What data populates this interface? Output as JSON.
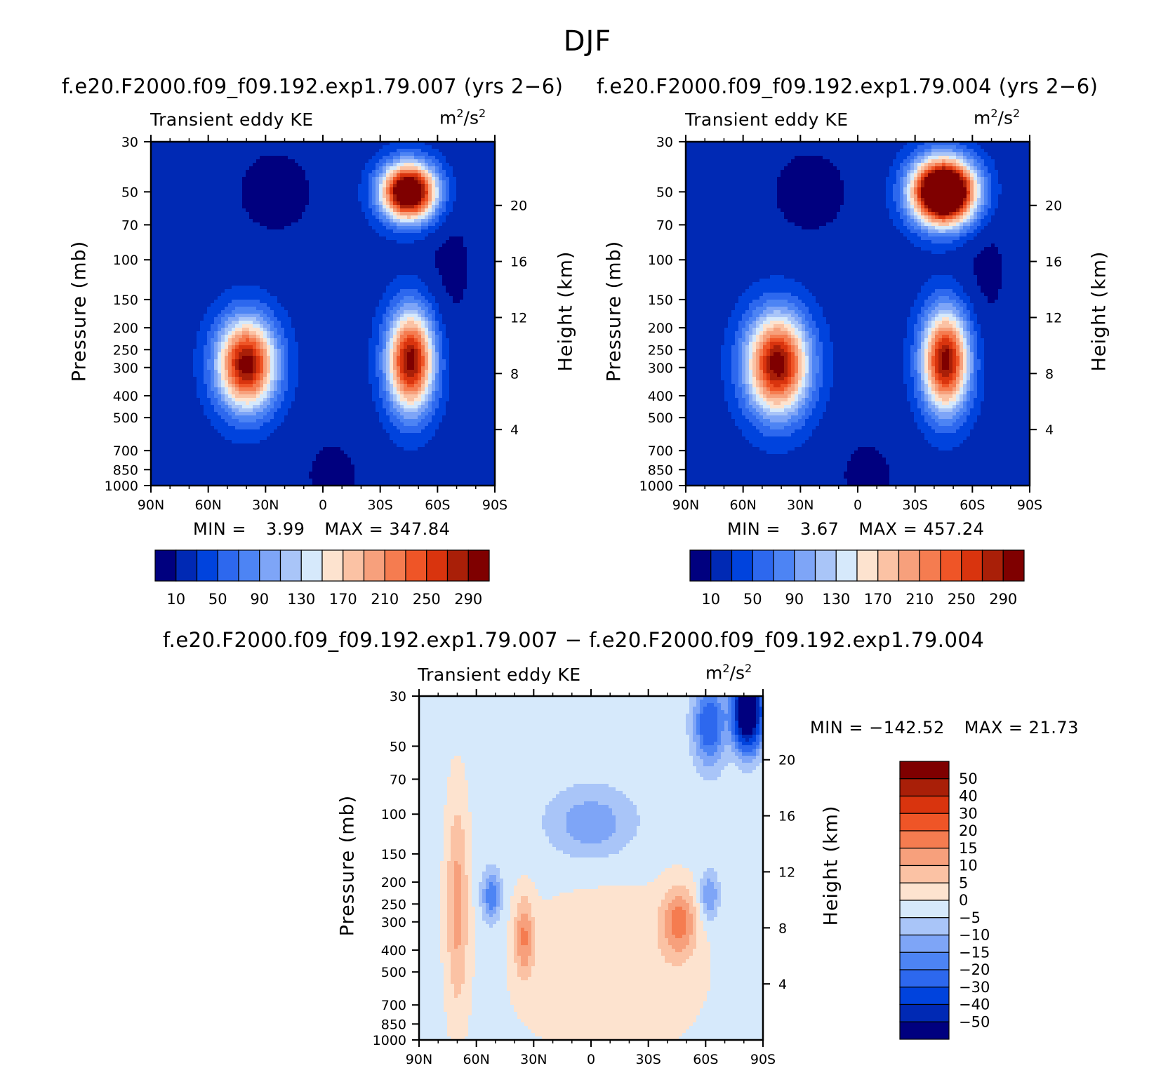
{
  "figure": {
    "title": "DJF"
  },
  "top_left": {
    "case_title": "f.e20.F2000.f09_f09.192.exp1.79.007 (yrs 2−6)",
    "variable": "Transient eddy KE",
    "units": "m",
    "units_exp1": "2",
    "units_mid": "/s",
    "units_exp2": "2",
    "min_label": "MIN =",
    "min_value": "3.99",
    "max_label": "MAX =",
    "max_value": "347.84"
  },
  "top_right": {
    "case_title": "f.e20.F2000.f09_f09.192.exp1.79.004 (yrs 2−6)",
    "variable": "Transient eddy KE",
    "units": "m",
    "units_exp1": "2",
    "units_mid": "/s",
    "units_exp2": "2",
    "min_label": "MIN =",
    "min_value": "3.67",
    "max_label": "MAX =",
    "max_value": "457.24"
  },
  "bottom": {
    "case_title": "f.e20.F2000.f09_f09.192.exp1.79.007 − f.e20.F2000.f09_f09.192.exp1.79.004",
    "variable": "Transient eddy KE",
    "units": "m",
    "units_exp1": "2",
    "units_mid": "/s",
    "units_exp2": "2",
    "min_label": "MIN =",
    "min_value": "−142.52",
    "max_label": "MAX =",
    "max_value": "21.73"
  },
  "axes": {
    "ylabel_left": "Pressure (mb)",
    "ylabel_right": "Height (km)"
  },
  "colors": {
    "seq": [
      "#00007f",
      "#0029b4",
      "#0043dd",
      "#2d68ee",
      "#4d84f4",
      "#7ea5f7",
      "#a9c5f8",
      "#d6e9fb",
      "#fde3cf",
      "#fbc2a4",
      "#f7a07c",
      "#f57c50",
      "#ef5527",
      "#d9340e",
      "#a91f08",
      "#7f0000"
    ],
    "div": [
      "#00007f",
      "#0029b4",
      "#0043dd",
      "#2d68ee",
      "#4d84f4",
      "#7ea5f7",
      "#a9c5f8",
      "#d6e9fb",
      "#fde3cf",
      "#fbc2a4",
      "#f7a07c",
      "#f57c50",
      "#ef5527",
      "#d9340e",
      "#a91f08",
      "#7f0000"
    ]
  },
  "chart_data": [
    {
      "type": "contour",
      "title": "Transient eddy KE",
      "subtitle": "f.e20.F2000.f09_f09.192.exp1.79.007 (yrs 2−6)",
      "units": "m2/s2",
      "xlabel": "",
      "ylabel": "Pressure (mb)",
      "y2label": "Height (km)",
      "x_ticks": [
        "90N",
        "60N",
        "30N",
        "0",
        "30S",
        "60S",
        "90S"
      ],
      "y_ticks": [
        30,
        50,
        70,
        100,
        150,
        200,
        250,
        300,
        400,
        500,
        700,
        850,
        1000
      ],
      "y2_ticks": [
        4,
        8,
        12,
        16,
        20
      ],
      "xlim": [
        90,
        -90
      ],
      "ylim": [
        1000,
        30
      ],
      "levels": [
        10,
        30,
        50,
        70,
        90,
        110,
        130,
        150,
        170,
        190,
        210,
        230,
        250,
        270,
        290
      ],
      "colorbar_labels": [
        "10",
        "50",
        "90",
        "130",
        "170",
        "210",
        "250",
        "290"
      ],
      "min": 3.99,
      "max": 347.84,
      "base": 20,
      "features": [
        {
          "lat": -45,
          "p": 50,
          "slat": 14,
          "slp": 0.28,
          "amp": 360
        },
        {
          "lat": 40,
          "p": 290,
          "slat": 15,
          "slp": 0.45,
          "amp": 285
        },
        {
          "lat": -46,
          "p": 280,
          "slat": 12,
          "slp": 0.5,
          "amp": 285
        },
        {
          "lat": -66,
          "p": 110,
          "slat": 16,
          "slp": 0.9,
          "amp": -14
        },
        {
          "lat": 25,
          "p": 50,
          "slat": 28,
          "slp": 0.6,
          "amp": -15
        },
        {
          "lat": -5,
          "p": 900,
          "slat": 20,
          "slp": 0.5,
          "amp": -14
        }
      ]
    },
    {
      "type": "contour",
      "title": "Transient eddy KE",
      "subtitle": "f.e20.F2000.f09_f09.192.exp1.79.004 (yrs 2−6)",
      "units": "m2/s2",
      "xlabel": "",
      "ylabel": "Pressure (mb)",
      "y2label": "Height (km)",
      "x_ticks": [
        "90N",
        "60N",
        "30N",
        "0",
        "30S",
        "60S",
        "90S"
      ],
      "y_ticks": [
        30,
        50,
        70,
        100,
        150,
        200,
        250,
        300,
        400,
        500,
        700,
        850,
        1000
      ],
      "y2_ticks": [
        4,
        8,
        12,
        16,
        20
      ],
      "xlim": [
        90,
        -90
      ],
      "ylim": [
        1000,
        30
      ],
      "levels": [
        10,
        30,
        50,
        70,
        90,
        110,
        130,
        150,
        170,
        190,
        210,
        230,
        250,
        270,
        290
      ],
      "colorbar_labels": [
        "10",
        "50",
        "90",
        "130",
        "170",
        "210",
        "250",
        "290"
      ],
      "min": 3.67,
      "max": 457.24,
      "base": 20,
      "features": [
        {
          "lat": -45,
          "p": 50,
          "slat": 16,
          "slp": 0.32,
          "amp": 450
        },
        {
          "lat": 42,
          "p": 290,
          "slat": 16,
          "slp": 0.5,
          "amp": 285
        },
        {
          "lat": -46,
          "p": 280,
          "slat": 12,
          "slp": 0.5,
          "amp": 285
        },
        {
          "lat": -66,
          "p": 110,
          "slat": 16,
          "slp": 0.9,
          "amp": -14
        },
        {
          "lat": 25,
          "p": 50,
          "slat": 28,
          "slp": 0.6,
          "amp": -15
        },
        {
          "lat": -5,
          "p": 900,
          "slat": 20,
          "slp": 0.5,
          "amp": -14
        }
      ]
    },
    {
      "type": "contour",
      "title": "Transient eddy KE",
      "subtitle": "f.e20.F2000.f09_f09.192.exp1.79.007 − f.e20.F2000.f09_f09.192.exp1.79.004",
      "units": "m2/s2",
      "xlabel": "",
      "ylabel": "Pressure (mb)",
      "y2label": "Height (km)",
      "x_ticks": [
        "90N",
        "60N",
        "30N",
        "0",
        "30S",
        "60S",
        "90S"
      ],
      "y_ticks": [
        30,
        50,
        70,
        100,
        150,
        200,
        250,
        300,
        400,
        500,
        700,
        850,
        1000
      ],
      "y2_ticks": [
        4,
        8,
        12,
        16,
        20
      ],
      "xlim": [
        90,
        -90
      ],
      "ylim": [
        1000,
        30
      ],
      "levels": [
        -50,
        -40,
        -30,
        -20,
        -15,
        -10,
        -5,
        0,
        5,
        10,
        15,
        20,
        30,
        40,
        50
      ],
      "colorbar_labels": [
        "50",
        "40",
        "30",
        "20",
        "15",
        "10",
        "5",
        "0",
        "−5",
        "−10",
        "−15",
        "−20",
        "−30",
        "−40",
        "−50"
      ],
      "min": -142.52,
      "max": 21.73,
      "base": -2,
      "features": [
        {
          "lat": -82,
          "p": 35,
          "slat": 7,
          "slp": 0.35,
          "amp": -80
        },
        {
          "lat": -62,
          "p": 40,
          "slat": 8,
          "slp": 0.4,
          "amp": -25
        },
        {
          "lat": 0,
          "p": 110,
          "slat": 22,
          "slp": 0.35,
          "amp": -12
        },
        {
          "lat": -10,
          "p": 500,
          "slat": 50,
          "slp": 0.9,
          "amp": 6
        },
        {
          "lat": -46,
          "p": 300,
          "slat": 9,
          "slp": 0.35,
          "amp": 18
        },
        {
          "lat": 70,
          "p": 250,
          "slat": 6,
          "slp": 1.1,
          "amp": 14
        },
        {
          "lat": 35,
          "p": 350,
          "slat": 5,
          "slp": 0.4,
          "amp": 16
        },
        {
          "lat": 52,
          "p": 230,
          "slat": 5,
          "slp": 0.25,
          "amp": -18
        },
        {
          "lat": -62,
          "p": 230,
          "slat": 5,
          "slp": 0.25,
          "amp": -14
        }
      ]
    }
  ]
}
